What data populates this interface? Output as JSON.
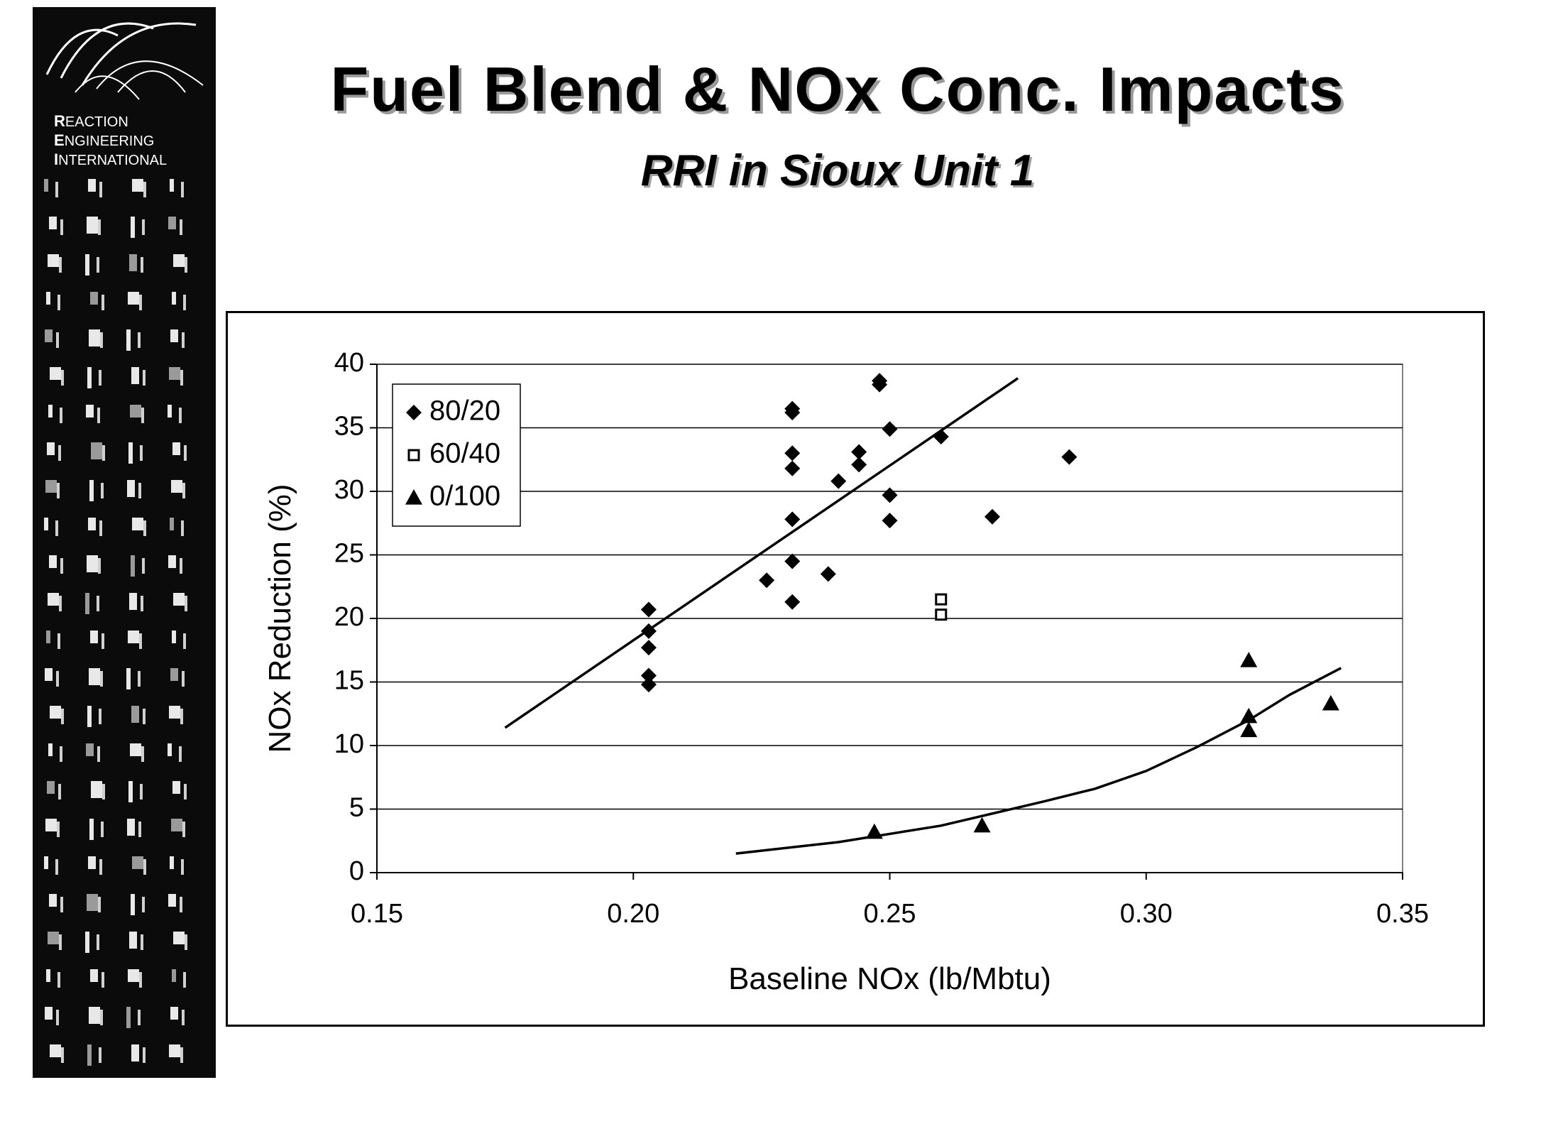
{
  "logo": {
    "line1": "EACTION",
    "line1_initial": "R",
    "line2": "NGINEERING",
    "line2_initial": "E",
    "line3": "NTERNATIONAL",
    "line3_initial": "I"
  },
  "slide": {
    "title": "Fuel Blend & NOx Conc. Impacts",
    "subtitle": "RRI in Sioux Unit 1"
  },
  "chart_data": {
    "type": "scatter",
    "xlabel": "Baseline NOx (lb/Mbtu)",
    "ylabel": "NOx Reduction (%)",
    "xlim": [
      0.15,
      0.35
    ],
    "ylim": [
      0,
      40
    ],
    "xticks": [
      "0.15",
      "0.20",
      "0.25",
      "0.30",
      "0.35"
    ],
    "yticks": [
      "0",
      "5",
      "10",
      "15",
      "20",
      "25",
      "30",
      "35",
      "40"
    ],
    "grid": "horizontal",
    "legend_position": "top-left",
    "series": [
      {
        "name": "80/20",
        "marker": "diamond",
        "points": [
          [
            0.203,
            20.7
          ],
          [
            0.203,
            19.0
          ],
          [
            0.203,
            17.7
          ],
          [
            0.203,
            15.5
          ],
          [
            0.203,
            14.8
          ],
          [
            0.226,
            23.0
          ],
          [
            0.231,
            36.5
          ],
          [
            0.231,
            36.2
          ],
          [
            0.231,
            33.0
          ],
          [
            0.231,
            31.8
          ],
          [
            0.231,
            27.8
          ],
          [
            0.231,
            24.5
          ],
          [
            0.231,
            21.3
          ],
          [
            0.238,
            23.5
          ],
          [
            0.24,
            30.8
          ],
          [
            0.244,
            33.1
          ],
          [
            0.244,
            32.1
          ],
          [
            0.248,
            38.7
          ],
          [
            0.248,
            38.4
          ],
          [
            0.25,
            34.9
          ],
          [
            0.25,
            29.7
          ],
          [
            0.25,
            27.7
          ],
          [
            0.26,
            34.3
          ],
          [
            0.27,
            28.0
          ],
          [
            0.285,
            32.7
          ]
        ]
      },
      {
        "name": "60/40",
        "marker": "open-square",
        "points": [
          [
            0.26,
            21.5
          ],
          [
            0.26,
            20.3
          ]
        ]
      },
      {
        "name": "0/100",
        "marker": "triangle",
        "points": [
          [
            0.247,
            3.2
          ],
          [
            0.268,
            3.7
          ],
          [
            0.32,
            16.7
          ],
          [
            0.32,
            12.3
          ],
          [
            0.32,
            11.2
          ],
          [
            0.336,
            13.3
          ]
        ]
      }
    ],
    "trendlines": [
      {
        "series": "80/20",
        "kind": "linear",
        "points": [
          [
            0.175,
            11.4
          ],
          [
            0.275,
            38.9
          ]
        ]
      },
      {
        "series": "0/100",
        "kind": "exponential",
        "points": [
          [
            0.22,
            1.5
          ],
          [
            0.24,
            2.4
          ],
          [
            0.26,
            3.7
          ],
          [
            0.28,
            5.6
          ],
          [
            0.29,
            6.6
          ],
          [
            0.3,
            8.0
          ],
          [
            0.31,
            9.9
          ],
          [
            0.32,
            12.0
          ],
          [
            0.328,
            14.0
          ],
          [
            0.338,
            16.1
          ]
        ]
      }
    ]
  }
}
